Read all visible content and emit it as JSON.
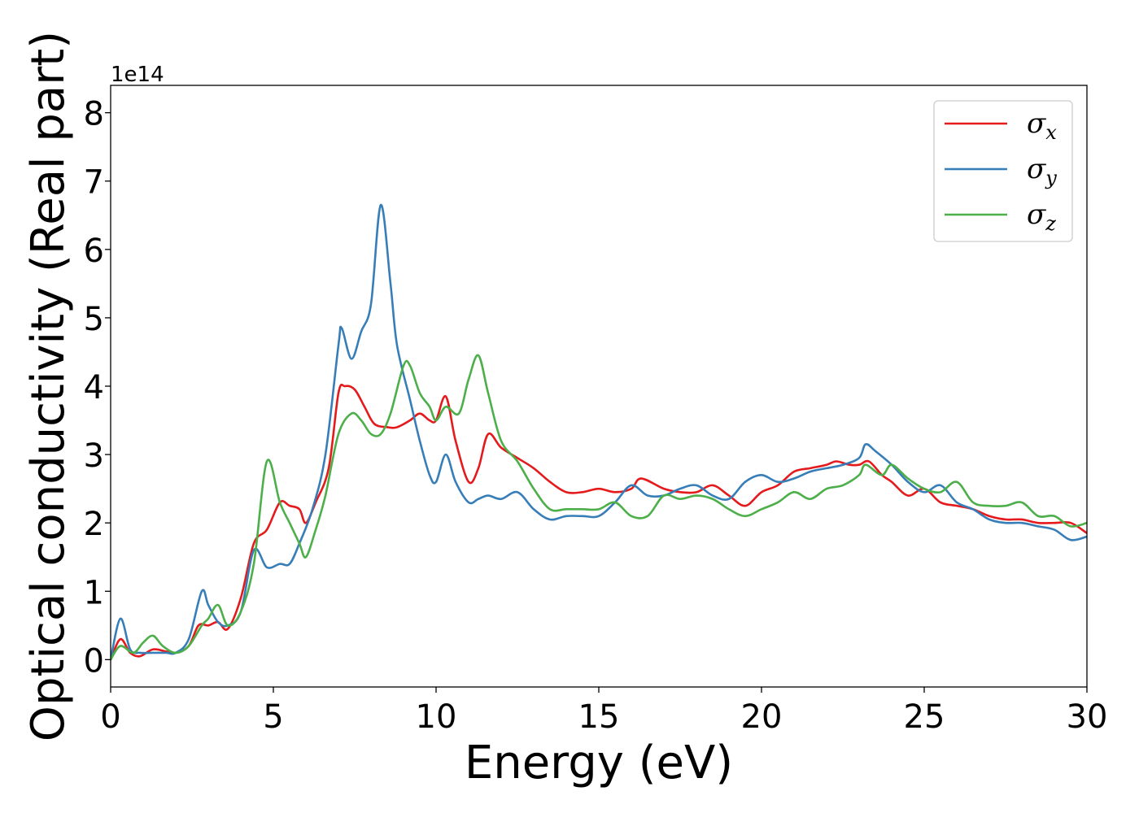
{
  "chart_data": {
    "type": "line",
    "xlabel": "Energy (eV)",
    "ylabel": "Optical conductivity (Real part)",
    "y_offset_label": "1e14",
    "xlim": [
      0,
      30
    ],
    "ylim": [
      -0.4,
      8.4
    ],
    "x_ticks": [
      0,
      5,
      10,
      15,
      20,
      25,
      30
    ],
    "y_ticks": [
      0,
      1,
      2,
      3,
      4,
      5,
      6,
      7,
      8
    ],
    "x_tick_labels": [
      "0",
      "5",
      "10",
      "15",
      "20",
      "25",
      "30"
    ],
    "y_tick_labels": [
      "0",
      "1",
      "2",
      "3",
      "4",
      "5",
      "6",
      "7",
      "8"
    ],
    "grid": false,
    "legend_position": "top-right",
    "series": [
      {
        "name": "σx",
        "symbol": "σ",
        "subscript": "x",
        "color": "#e41a1c",
        "x": [
          0,
          0.3,
          0.6,
          0.9,
          1.3,
          1.7,
          2.0,
          2.4,
          2.7,
          3.0,
          3.3,
          3.6,
          4.0,
          4.4,
          4.8,
          5.2,
          5.5,
          5.8,
          6.0,
          6.3,
          6.7,
          7.0,
          7.2,
          7.5,
          7.8,
          8.1,
          8.5,
          8.8,
          9.2,
          9.5,
          9.8,
          10.0,
          10.3,
          10.6,
          11.0,
          11.3,
          11.6,
          12.0,
          12.5,
          13.0,
          13.5,
          14.0,
          14.5,
          15.0,
          15.5,
          16.0,
          16.3,
          17.0,
          17.5,
          18.0,
          18.5,
          19.0,
          19.5,
          20.0,
          20.5,
          21.0,
          21.5,
          22.0,
          22.3,
          22.7,
          23.0,
          23.3,
          23.7,
          24.0,
          24.5,
          25.0,
          25.5,
          26.0,
          26.5,
          27.0,
          27.5,
          28.0,
          28.5,
          29.0,
          29.5,
          30.0
        ],
        "y": [
          0.0,
          0.3,
          0.1,
          0.05,
          0.15,
          0.12,
          0.1,
          0.2,
          0.5,
          0.5,
          0.55,
          0.45,
          0.9,
          1.7,
          1.9,
          2.3,
          2.25,
          2.2,
          2.0,
          2.3,
          2.8,
          3.9,
          4.0,
          3.95,
          3.7,
          3.45,
          3.4,
          3.4,
          3.5,
          3.6,
          3.5,
          3.5,
          3.85,
          3.2,
          2.6,
          2.8,
          3.3,
          3.1,
          2.95,
          2.8,
          2.6,
          2.45,
          2.45,
          2.5,
          2.45,
          2.5,
          2.65,
          2.5,
          2.45,
          2.45,
          2.55,
          2.4,
          2.25,
          2.45,
          2.55,
          2.75,
          2.8,
          2.85,
          2.9,
          2.85,
          2.85,
          2.9,
          2.7,
          2.6,
          2.4,
          2.5,
          2.3,
          2.25,
          2.2,
          2.1,
          2.05,
          2.05,
          2.0,
          2.0,
          2.0,
          1.85
        ]
      },
      {
        "name": "σy",
        "symbol": "σ",
        "subscript": "y",
        "color": "#377eb8",
        "x": [
          0,
          0.3,
          0.6,
          0.9,
          1.3,
          1.7,
          2.0,
          2.4,
          2.8,
          3.0,
          3.3,
          3.6,
          4.0,
          4.4,
          4.8,
          5.2,
          5.5,
          5.8,
          6.2,
          6.6,
          7.0,
          7.1,
          7.4,
          7.7,
          8.0,
          8.3,
          8.6,
          8.8,
          9.2,
          9.5,
          9.8,
          10.0,
          10.3,
          10.6,
          11.0,
          11.3,
          11.6,
          12.0,
          12.5,
          13.0,
          13.5,
          14.0,
          14.5,
          15.0,
          15.5,
          16.0,
          16.5,
          17.0,
          17.5,
          18.0,
          18.5,
          19.0,
          19.5,
          20.0,
          20.5,
          21.0,
          21.5,
          22.0,
          22.5,
          23.0,
          23.2,
          23.5,
          24.0,
          24.5,
          25.0,
          25.5,
          26.0,
          26.5,
          27.0,
          27.5,
          28.0,
          28.5,
          29.0,
          29.5,
          30.0
        ],
        "y": [
          0.0,
          0.6,
          0.15,
          0.1,
          0.1,
          0.1,
          0.1,
          0.3,
          1.0,
          0.8,
          0.55,
          0.5,
          0.7,
          1.6,
          1.35,
          1.4,
          1.4,
          1.7,
          2.2,
          3.0,
          4.6,
          4.85,
          4.4,
          4.8,
          5.2,
          6.65,
          5.5,
          4.6,
          3.8,
          3.2,
          2.7,
          2.6,
          3.0,
          2.6,
          2.3,
          2.35,
          2.4,
          2.35,
          2.45,
          2.2,
          2.05,
          2.1,
          2.1,
          2.1,
          2.3,
          2.55,
          2.4,
          2.4,
          2.5,
          2.55,
          2.4,
          2.35,
          2.6,
          2.7,
          2.6,
          2.65,
          2.75,
          2.8,
          2.85,
          2.95,
          3.15,
          3.05,
          2.85,
          2.6,
          2.45,
          2.55,
          2.3,
          2.2,
          2.05,
          2.0,
          2.0,
          1.95,
          1.9,
          1.75,
          1.8
        ]
      },
      {
        "name": "σz",
        "symbol": "σ",
        "subscript": "z",
        "color": "#4daf4a",
        "x": [
          0,
          0.3,
          0.7,
          1.0,
          1.3,
          1.6,
          2.0,
          2.4,
          2.8,
          3.0,
          3.3,
          3.6,
          4.0,
          4.4,
          4.8,
          5.2,
          5.5,
          5.8,
          6.0,
          6.3,
          6.6,
          7.0,
          7.4,
          7.7,
          8.0,
          8.3,
          8.6,
          9.0,
          9.2,
          9.5,
          9.8,
          10.0,
          10.3,
          10.7,
          11.0,
          11.3,
          11.6,
          12.0,
          12.5,
          13.0,
          13.5,
          14.0,
          14.5,
          15.0,
          15.5,
          16.0,
          16.5,
          17.0,
          17.5,
          18.0,
          18.5,
          19.0,
          19.5,
          20.0,
          20.5,
          21.0,
          21.5,
          22.0,
          22.5,
          23.0,
          23.2,
          23.7,
          24.0,
          24.5,
          25.0,
          25.5,
          26.0,
          26.5,
          27.0,
          27.5,
          28.0,
          28.5,
          29.0,
          29.5,
          30.0
        ],
        "y": [
          0.0,
          0.2,
          0.1,
          0.25,
          0.35,
          0.2,
          0.1,
          0.2,
          0.5,
          0.6,
          0.8,
          0.5,
          0.7,
          1.4,
          2.9,
          2.3,
          2.0,
          1.7,
          1.5,
          1.9,
          2.4,
          3.3,
          3.6,
          3.5,
          3.3,
          3.3,
          3.6,
          4.3,
          4.3,
          3.9,
          3.7,
          3.5,
          3.7,
          3.6,
          4.1,
          4.45,
          3.9,
          3.2,
          2.9,
          2.5,
          2.2,
          2.2,
          2.2,
          2.2,
          2.3,
          2.1,
          2.1,
          2.4,
          2.35,
          2.4,
          2.35,
          2.2,
          2.1,
          2.2,
          2.3,
          2.45,
          2.35,
          2.5,
          2.55,
          2.7,
          2.85,
          2.7,
          2.85,
          2.65,
          2.5,
          2.45,
          2.6,
          2.3,
          2.25,
          2.25,
          2.3,
          2.1,
          2.1,
          1.95,
          2.0
        ]
      }
    ]
  }
}
